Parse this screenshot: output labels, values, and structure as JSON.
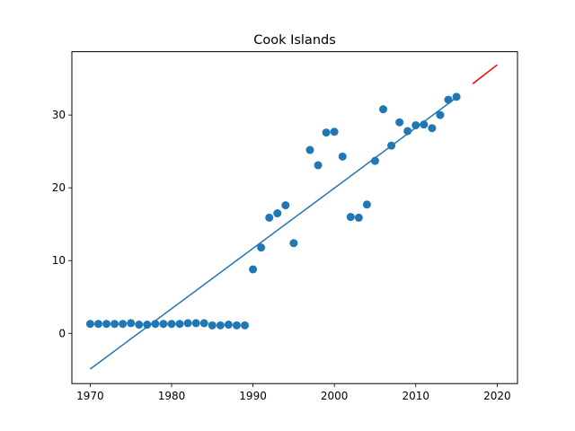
{
  "chart_data": {
    "type": "scatter",
    "title": "Cook Islands",
    "xlabel": "",
    "ylabel": "",
    "xlim": [
      1967.75,
      2022.5
    ],
    "ylim": [
      -6.9,
      38.7
    ],
    "xticks": [
      1970,
      1980,
      1990,
      2000,
      2010,
      2020
    ],
    "yticks": [
      0,
      10,
      20,
      30
    ],
    "grid": false,
    "legend": "none",
    "colors": {
      "points": "#1f77b4",
      "fit_line": "#1f77b4",
      "forecast_line": "#ff0000"
    },
    "series": [
      {
        "kind": "points",
        "x": [
          1970,
          1971,
          1972,
          1973,
          1974,
          1975,
          1976,
          1977,
          1978,
          1979,
          1980,
          1981,
          1982,
          1983,
          1984,
          1985,
          1986,
          1987,
          1988,
          1989,
          1990,
          1991,
          1992,
          1993,
          1994,
          1995,
          1997,
          1998,
          1999,
          2000,
          2001,
          2002,
          2003,
          2004,
          2005,
          2006,
          2007,
          2008,
          2009,
          2010,
          2011,
          2012,
          2013,
          2014,
          2015
        ],
        "y": [
          1.3,
          1.3,
          1.3,
          1.3,
          1.3,
          1.4,
          1.2,
          1.2,
          1.3,
          1.3,
          1.3,
          1.3,
          1.4,
          1.4,
          1.4,
          1.1,
          1.1,
          1.2,
          1.1,
          1.1,
          8.8,
          11.8,
          15.9,
          16.5,
          17.6,
          12.4,
          25.2,
          23.1,
          27.6,
          27.7,
          24.3,
          16.0,
          15.9,
          17.7,
          23.7,
          30.8,
          25.8,
          29.0,
          27.8,
          28.6,
          28.7,
          28.2,
          30.0,
          32.1,
          32.5
        ]
      },
      {
        "kind": "fit-line",
        "x": [
          1970,
          2015
        ],
        "y": [
          -4.9,
          32.4
        ]
      },
      {
        "kind": "forecast-line",
        "x": [
          2017,
          2020
        ],
        "y": [
          34.3,
          36.9
        ]
      }
    ]
  }
}
